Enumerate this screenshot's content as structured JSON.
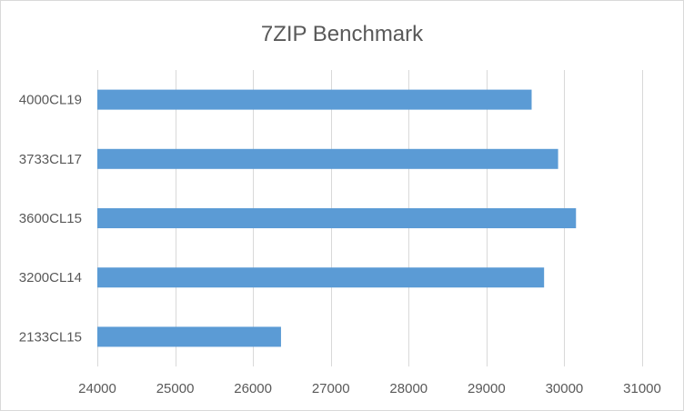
{
  "chart_data": {
    "type": "bar",
    "orientation": "horizontal",
    "title": "7ZIP Benchmark",
    "categories": [
      "4000CL19",
      "3733CL17",
      "3600CL15",
      "3200CL14",
      "2133CL15"
    ],
    "values": [
      29580,
      29920,
      30150,
      29740,
      26360
    ],
    "xlim": [
      24000,
      31000
    ],
    "xticks": [
      "24000",
      "25000",
      "26000",
      "27000",
      "28000",
      "29000",
      "30000",
      "31000"
    ],
    "xlabel": "",
    "ylabel": "",
    "grid": "vertical",
    "legend": "none",
    "bar_color": "#5b9bd5"
  }
}
